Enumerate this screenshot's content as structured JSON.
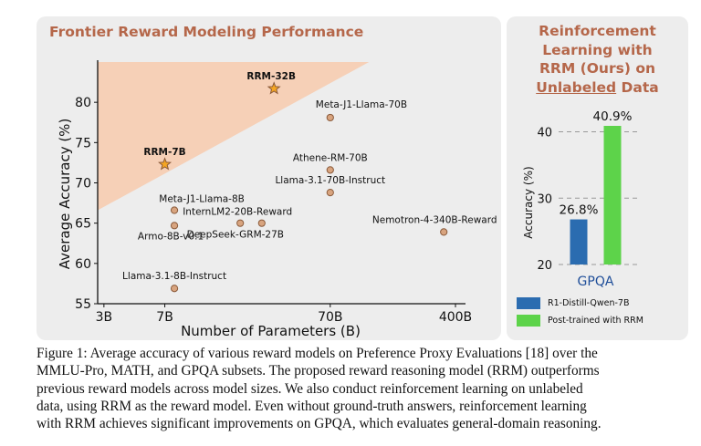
{
  "left_panel": {
    "title": "Frontier Reward Modeling Performance"
  },
  "right_panel": {
    "title_line1": "Reinforcement",
    "title_line2": "Learning with",
    "title_line3": "RRM (Ours) on",
    "title_underlined": "Unlabeled",
    "title_tail": " Data"
  },
  "chart_data": [
    {
      "type": "scatter",
      "title": "Frontier Reward Modeling Performance",
      "xlabel": "Number of Parameters (B)",
      "ylabel": "Average Accuracy (%)",
      "x_scale": "log",
      "x_ticks": [
        3,
        7,
        70,
        400
      ],
      "x_tick_labels": [
        "3B",
        "7B",
        "70B",
        "400B"
      ],
      "y_ticks": [
        55,
        60,
        65,
        70,
        75,
        80
      ],
      "ylim": [
        55,
        85
      ],
      "highlight_region_color": "#f6ccb0",
      "points": [
        {
          "name": "RRM-32B",
          "x": 32,
          "y": 81.7,
          "marker": "star",
          "bold": true
        },
        {
          "name": "RRM-7B",
          "x": 7,
          "y": 72.3,
          "marker": "star",
          "bold": true
        },
        {
          "name": "Meta-J1-Llama-70B",
          "x": 70,
          "y": 78.1,
          "marker": "circle"
        },
        {
          "name": "Athene-RM-70B",
          "x": 70,
          "y": 71.6,
          "marker": "circle"
        },
        {
          "name": "Llama-3.1-70B-Instruct",
          "x": 70,
          "y": 68.8,
          "marker": "circle"
        },
        {
          "name": "Meta-J1-Llama-8B",
          "x": 8,
          "y": 66.6,
          "marker": "circle"
        },
        {
          "name": "InternLM2-20B-Reward",
          "x": 20,
          "y": 65.0,
          "marker": "circle"
        },
        {
          "name": "DeepSeek-GRM-27B",
          "x": 27,
          "y": 65.0,
          "marker": "circle"
        },
        {
          "name": "Armo-8B-v0.1",
          "x": 8,
          "y": 64.7,
          "marker": "circle"
        },
        {
          "name": "Nemotron-4-340B-Reward",
          "x": 340,
          "y": 63.9,
          "marker": "circle"
        },
        {
          "name": "Llama-3.1-8B-Instruct",
          "x": 8,
          "y": 56.9,
          "marker": "circle"
        }
      ],
      "colors": {
        "star": "#f5a623",
        "circle": "#d8a47f",
        "edge": "#8a5a3a"
      }
    },
    {
      "type": "bar",
      "categories": [
        "GPQA"
      ],
      "ylabel": "Accuracy (%)",
      "ylim": [
        20,
        42
      ],
      "y_ticks": [
        20,
        30,
        40
      ],
      "series": [
        {
          "name": "R1-Distill-Qwen-7B",
          "values": [
            26.8
          ],
          "value_labels": [
            "26.8%"
          ],
          "color": "#2b6cb0"
        },
        {
          "name": "Post-trained with RRM",
          "values": [
            40.9
          ],
          "value_labels": [
            "40.9%"
          ],
          "color": "#5dd34a"
        }
      ],
      "grid": "dashed-horizontal",
      "legend_position": "bottom"
    }
  ],
  "caption": {
    "line1": "Figure 1: Average accuracy of various reward models on Preference Proxy Evaluations [18] over the",
    "line2": "MMLU-Pro, MATH, and GPQA subsets. The proposed reward reasoning model (RRM) outperforms",
    "line3": "previous reward models across model sizes. We also conduct reinforcement learning on unlabeled",
    "line4": "data, using RRM as the reward model. Even without ground-truth answers, reinforcement learning",
    "line5": "with RRM achieves significant improvements on GPQA, which evaluates general-domain reasoning."
  }
}
